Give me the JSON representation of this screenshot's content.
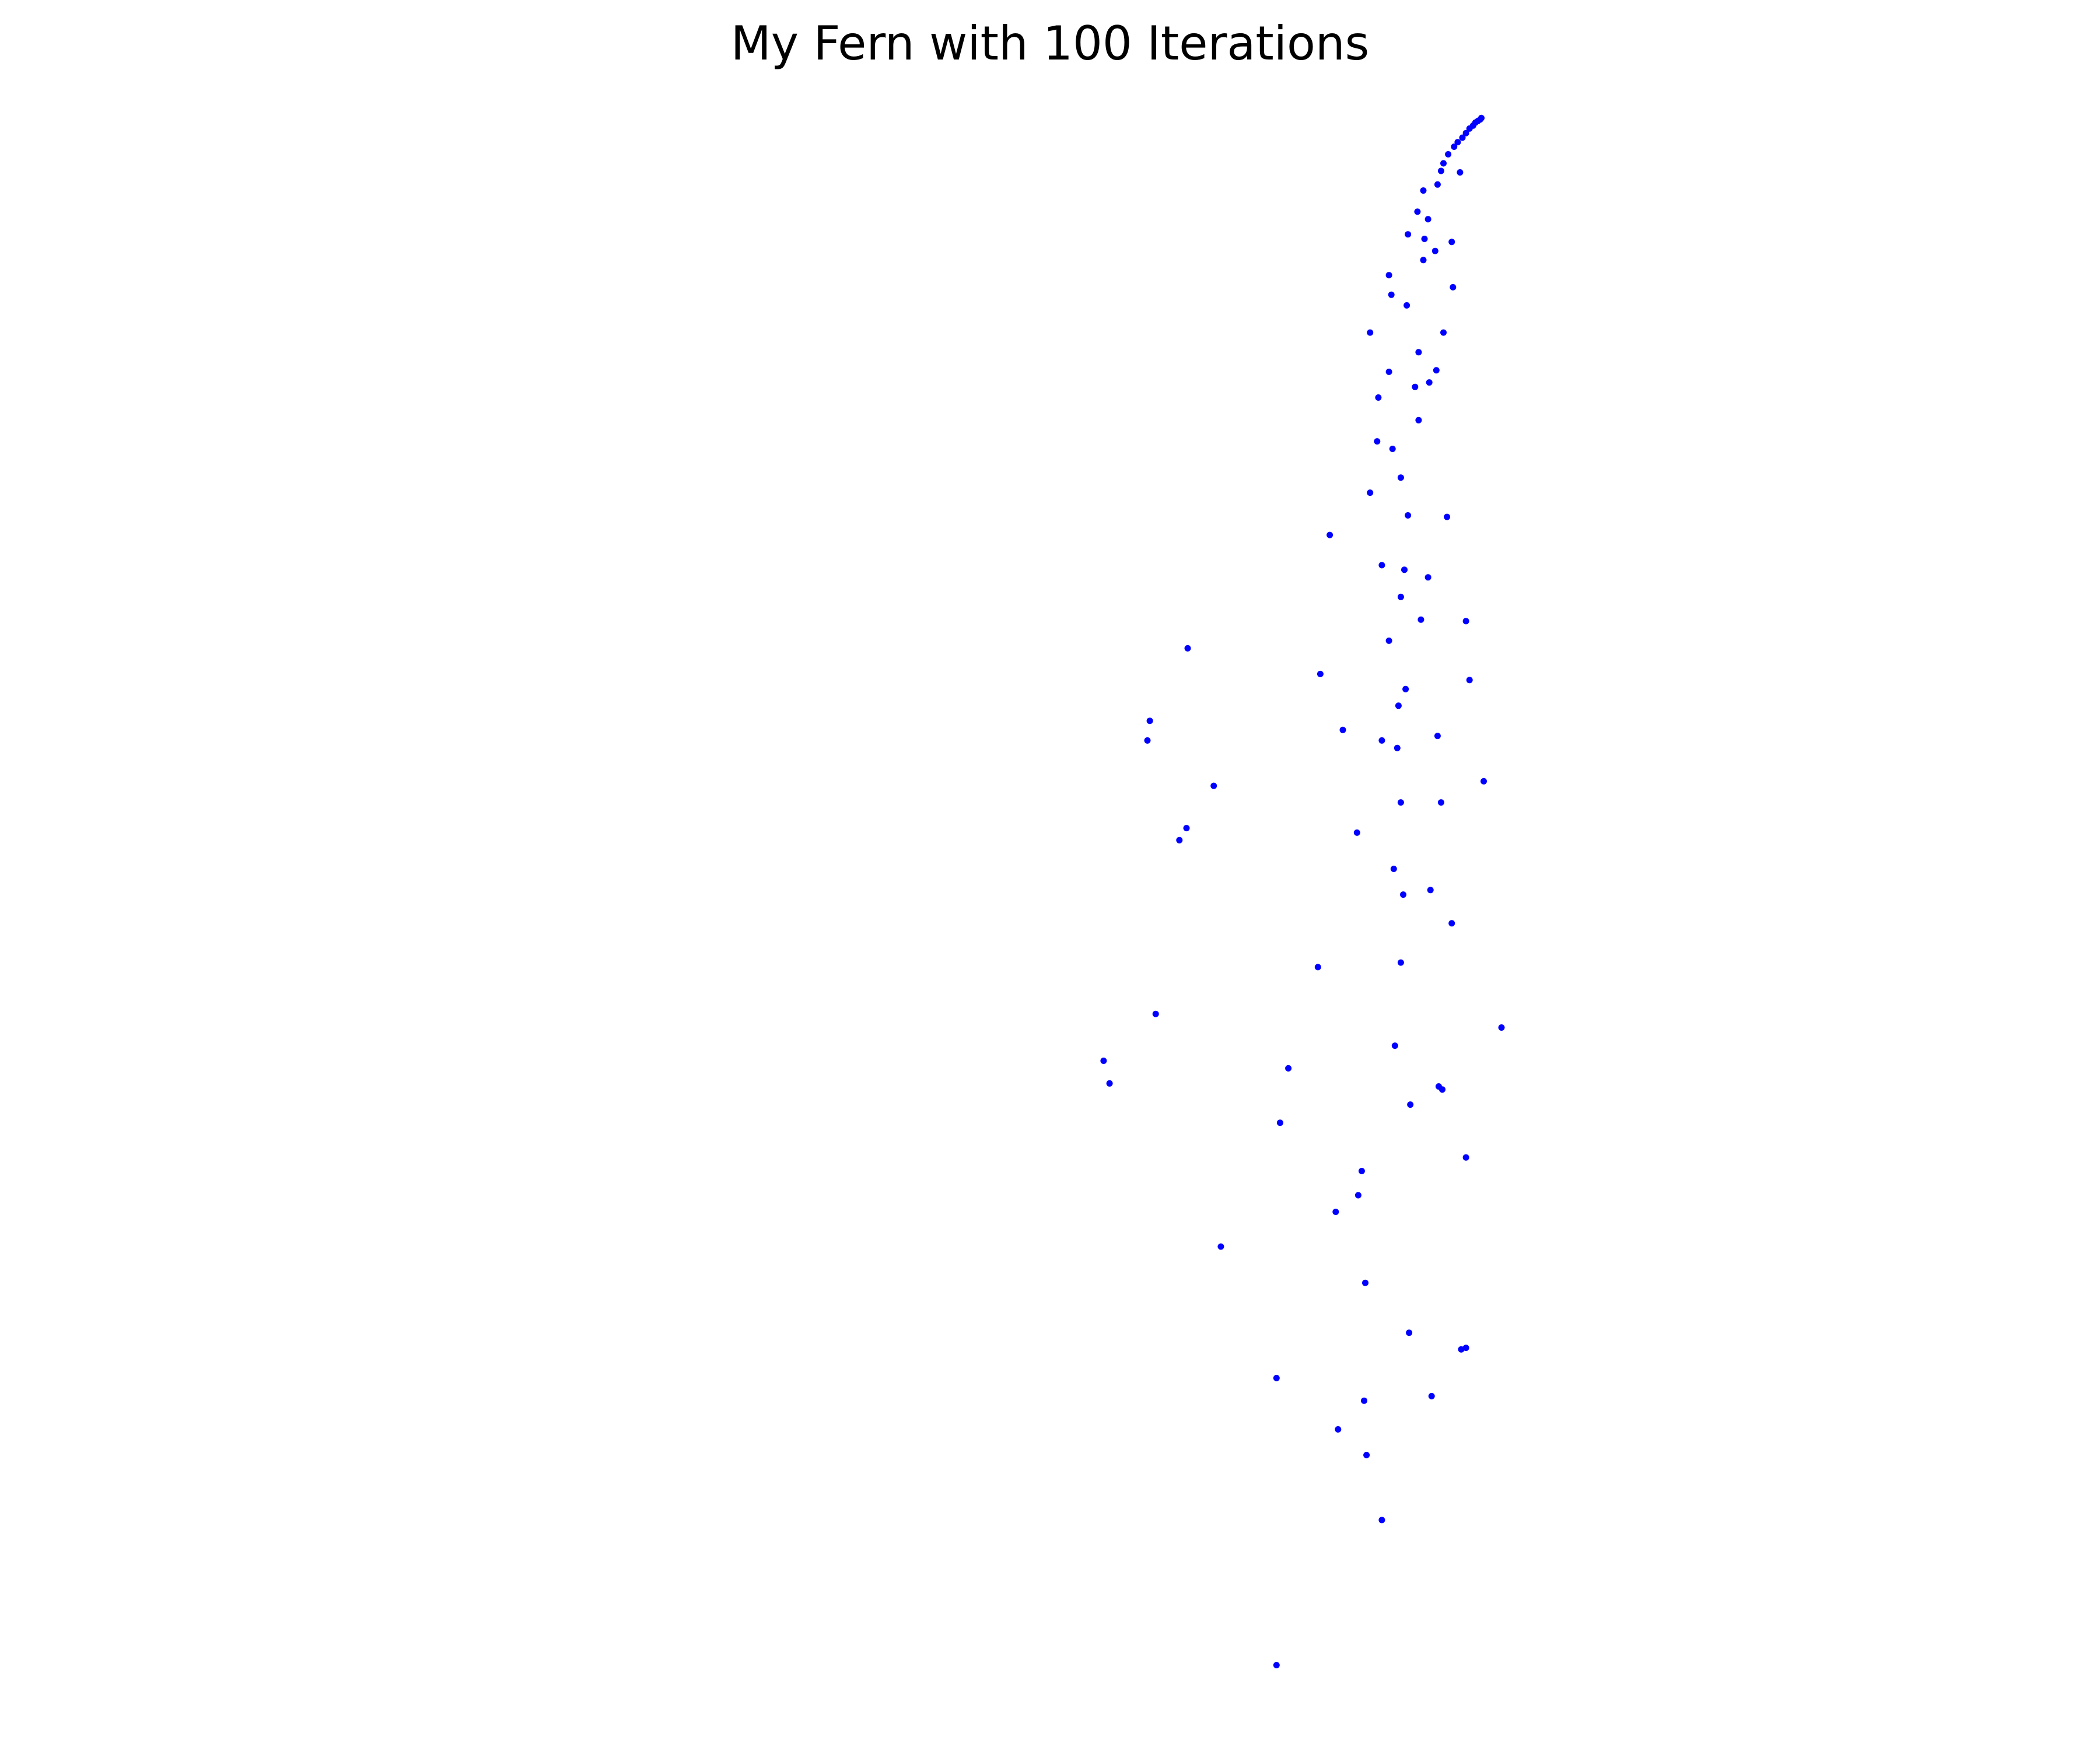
{
  "chart_data": {
    "type": "scatter",
    "title": "My Fern with 100 Iterations",
    "xlabel": "",
    "ylabel": "",
    "axes_visible": false,
    "grid": false,
    "legend": "none",
    "marker_color": "#0000ff",
    "xlim": [
      0,
      100
    ],
    "ylim": [
      0,
      100
    ],
    "series": [
      {
        "points": [
          [
            47.6,
            0.6
          ],
          [
            56.5,
            10.2
          ],
          [
            55.2,
            14.5
          ],
          [
            52.8,
            16.2
          ],
          [
            55.0,
            18.1
          ],
          [
            47.6,
            19.6
          ],
          [
            60.7,
            18.4
          ],
          [
            63.2,
            21.5
          ],
          [
            63.6,
            21.6
          ],
          [
            58.8,
            22.6
          ],
          [
            55.1,
            25.9
          ],
          [
            42.9,
            28.3
          ],
          [
            52.6,
            30.6
          ],
          [
            54.5,
            31.7
          ],
          [
            54.8,
            33.3
          ],
          [
            63.6,
            34.2
          ],
          [
            47.9,
            36.5
          ],
          [
            58.9,
            37.7
          ],
          [
            61.6,
            38.7
          ],
          [
            61.3,
            38.9
          ],
          [
            57.6,
            41.6
          ],
          [
            66.6,
            42.8
          ],
          [
            37.4,
            43.7
          ],
          [
            51.1,
            46.8
          ],
          [
            58.1,
            47.1
          ],
          [
            62.4,
            49.7
          ],
          [
            58.3,
            51.6
          ],
          [
            33.5,
            39.1
          ],
          [
            33.0,
            40.6
          ],
          [
            48.6,
            40.1
          ],
          [
            60.6,
            51.9
          ],
          [
            54.4,
            55.7
          ],
          [
            40.0,
            56.0
          ],
          [
            57.5,
            53.3
          ],
          [
            61.5,
            57.7
          ],
          [
            58.1,
            57.7
          ],
          [
            65.1,
            59.1
          ],
          [
            53.2,
            62.5
          ],
          [
            57.8,
            61.3
          ],
          [
            61.2,
            62.1
          ],
          [
            57.9,
            64.1
          ],
          [
            58.5,
            65.2
          ],
          [
            51.3,
            66.2
          ],
          [
            63.6,
            69.7
          ],
          [
            56.5,
            61.8
          ],
          [
            36.7,
            61.8
          ],
          [
            36.9,
            63.1
          ],
          [
            42.3,
            58.8
          ],
          [
            40.1,
            67.9
          ],
          [
            39.4,
            55.2
          ],
          [
            57.1,
            68.4
          ],
          [
            59.8,
            69.8
          ],
          [
            58.1,
            71.3
          ],
          [
            52.1,
            75.4
          ],
          [
            60.4,
            72.6
          ],
          [
            62.0,
            76.6
          ],
          [
            58.7,
            76.7
          ],
          [
            55.5,
            78.2
          ],
          [
            58.1,
            79.2
          ],
          [
            57.4,
            81.1
          ],
          [
            56.1,
            81.6
          ],
          [
            57.1,
            86.2
          ],
          [
            59.3,
            85.2
          ],
          [
            60.5,
            85.5
          ],
          [
            56.2,
            84.5
          ],
          [
            55.5,
            88.8
          ],
          [
            57.3,
            91.3
          ],
          [
            58.6,
            90.6
          ],
          [
            57.1,
            92.6
          ],
          [
            60.0,
            93.6
          ],
          [
            60.1,
            95.0
          ],
          [
            58.7,
            95.3
          ],
          [
            60.4,
            96.3
          ],
          [
            59.5,
            96.8
          ],
          [
            60.0,
            98.2
          ],
          [
            61.2,
            98.6
          ],
          [
            61.5,
            99.5
          ],
          [
            61.7,
            100.0
          ],
          [
            62.1,
            100.6
          ],
          [
            62.6,
            101.1
          ],
          [
            62.9,
            101.4
          ],
          [
            63.3,
            101.7
          ],
          [
            63.6,
            102.0
          ],
          [
            63.9,
            102.3
          ],
          [
            64.2,
            102.5
          ],
          [
            64.4,
            102.7
          ],
          [
            64.6,
            102.8
          ],
          [
            64.8,
            102.9
          ],
          [
            64.9,
            103.0
          ],
          [
            63.1,
            99.4
          ],
          [
            62.4,
            94.8
          ],
          [
            61.0,
            94.2
          ],
          [
            62.5,
            91.8
          ],
          [
            61.7,
            88.8
          ],
          [
            59.6,
            87.5
          ],
          [
            61.1,
            86.3
          ],
          [
            59.6,
            83.0
          ],
          [
            56.5,
            73.4
          ],
          [
            58.4,
            73.1
          ],
          [
            63.9,
            65.8
          ]
        ]
      }
    ]
  }
}
